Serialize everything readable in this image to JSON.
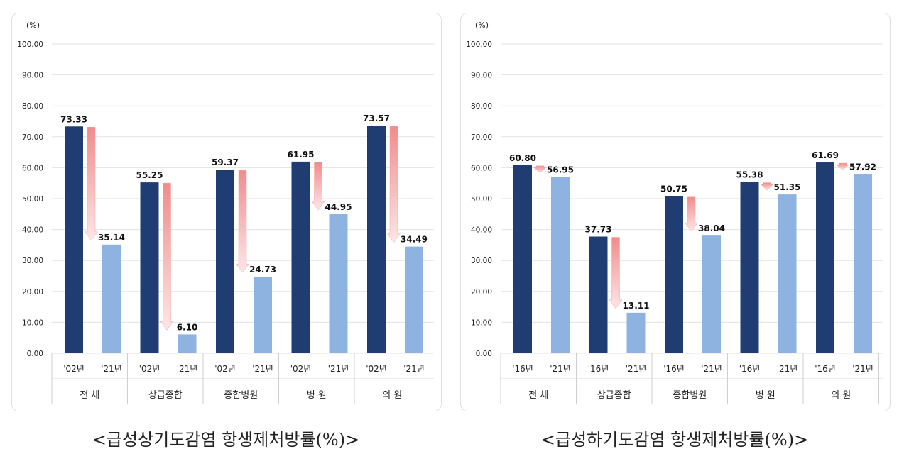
{
  "charts": [
    {
      "id": "left",
      "unit_label": "(%)",
      "yticks": [
        "0.00",
        "10.00",
        "20.00",
        "30.00",
        "40.00",
        "50.00",
        "60.00",
        "70.00",
        "80.00",
        "90.00",
        "100.00"
      ],
      "caption": "<급성상기도감염  항생제처방률(%)>",
      "groups": [
        {
          "name": "전 체",
          "labels": [
            "'02년",
            "'21년"
          ],
          "values": [
            73.33,
            35.14
          ],
          "value_labels": [
            "73.33",
            "35.14"
          ]
        },
        {
          "name": "상급종합",
          "labels": [
            "'02년",
            "'21년"
          ],
          "values": [
            55.25,
            6.1
          ],
          "value_labels": [
            "55.25",
            "6.10"
          ]
        },
        {
          "name": "종합병원",
          "labels": [
            "'02년",
            "'21년"
          ],
          "values": [
            59.37,
            24.73
          ],
          "value_labels": [
            "59.37",
            "24.73"
          ]
        },
        {
          "name": "병 원",
          "labels": [
            "'02년",
            "'21년"
          ],
          "values": [
            61.95,
            44.95
          ],
          "value_labels": [
            "61.95",
            "44.95"
          ]
        },
        {
          "name": "의 원",
          "labels": [
            "'02년",
            "'21년"
          ],
          "values": [
            73.57,
            34.49
          ],
          "value_labels": [
            "73.57",
            "34.49"
          ]
        }
      ]
    },
    {
      "id": "right",
      "unit_label": "(%)",
      "yticks": [
        "0.00",
        "10.00",
        "20.00",
        "30.00",
        "40.00",
        "50.00",
        "60.00",
        "70.00",
        "80.00",
        "90.00",
        "100.00"
      ],
      "caption": "<급성하기도감염  항생제처방률(%)>",
      "groups": [
        {
          "name": "전 체",
          "labels": [
            "'16년",
            "'21년"
          ],
          "values": [
            60.8,
            56.95
          ],
          "value_labels": [
            "60.80",
            "56.95"
          ]
        },
        {
          "name": "상급종합",
          "labels": [
            "'16년",
            "'21년"
          ],
          "values": [
            37.73,
            13.11
          ],
          "value_labels": [
            "37.73",
            "13.11"
          ]
        },
        {
          "name": "종합병원",
          "labels": [
            "'16년",
            "'21년"
          ],
          "values": [
            50.75,
            38.04
          ],
          "value_labels": [
            "50.75",
            "38.04"
          ]
        },
        {
          "name": "병 원",
          "labels": [
            "'16년",
            "'21년"
          ],
          "values": [
            55.38,
            51.35
          ],
          "value_labels": [
            "55.38",
            "51.35"
          ]
        },
        {
          "name": "의 원",
          "labels": [
            "'16년",
            "'21년"
          ],
          "values": [
            61.69,
            57.92
          ],
          "value_labels": [
            "61.69",
            "57.92"
          ]
        }
      ]
    }
  ],
  "chart_data": [
    {
      "type": "bar",
      "title": "<급성상기도감염  항생제처방률(%)>",
      "ylabel": "(%)",
      "ylim": [
        0,
        100
      ],
      "categories": [
        "전 체",
        "상급종합",
        "종합병원",
        "병 원",
        "의 원"
      ],
      "series": [
        {
          "name": "'02년",
          "values": [
            73.33,
            55.25,
            59.37,
            61.95,
            73.57
          ]
        },
        {
          "name": "'21년",
          "values": [
            35.14,
            6.1,
            24.73,
            44.95,
            34.49
          ]
        }
      ],
      "grid": true,
      "colors": {
        "'02년": "#1f3d73",
        "'21년": "#8eb3e1",
        "arrow": "#f28b8b"
      }
    },
    {
      "type": "bar",
      "title": "<급성하기도감염  항생제처방률(%)>",
      "ylabel": "(%)",
      "ylim": [
        0,
        100
      ],
      "categories": [
        "전 체",
        "상급종합",
        "종합병원",
        "병 원",
        "의 원"
      ],
      "series": [
        {
          "name": "'16년",
          "values": [
            60.8,
            37.73,
            50.75,
            55.38,
            61.69
          ]
        },
        {
          "name": "'21년",
          "values": [
            56.95,
            13.11,
            38.04,
            51.35,
            57.92
          ]
        }
      ],
      "grid": true,
      "colors": {
        "'16년": "#1f3d73",
        "'21년": "#8eb3e1",
        "arrow": "#f28b8b"
      }
    }
  ],
  "colors": {
    "dark_bar": "#1f3d73",
    "light_bar": "#8eb3e1",
    "arrow": "#f28b8b",
    "grid": "#e3e3e3"
  }
}
